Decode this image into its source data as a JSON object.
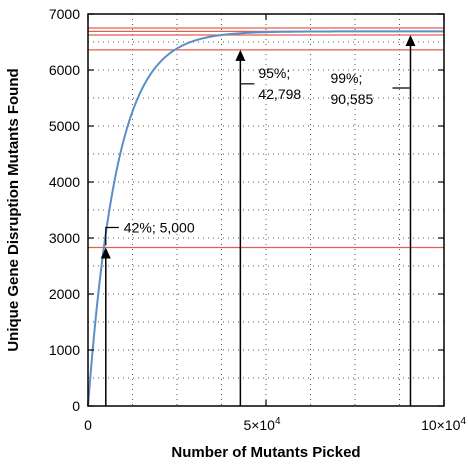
{
  "chart_data": {
    "type": "line",
    "xlabel": "Number of Mutants Picked",
    "ylabel": "Unique Gene Disruption Mutants Found",
    "xlim": [
      0,
      100000
    ],
    "ylim": [
      0,
      7000
    ],
    "x_ticks": [
      0,
      50000,
      100000
    ],
    "x_tick_labels": [
      "0",
      "5×10",
      "10×10"
    ],
    "x_tick_exponent": "4",
    "y_ticks": [
      0,
      1000,
      2000,
      3000,
      4000,
      5000,
      6000,
      7000
    ],
    "y_tick_labels": [
      "0",
      "1000",
      "2000",
      "3000",
      "4000",
      "5000",
      "6000",
      "7000"
    ],
    "grid": "dotted",
    "curve": {
      "saturation": 6690,
      "color": "#5b8fc7",
      "x": [
        0,
        1000,
        2000,
        3000,
        5000,
        8000,
        12000,
        16000,
        20000,
        25000,
        30000,
        35000,
        42798,
        50000,
        60000,
        70000,
        80000,
        90585,
        100000
      ],
      "y": [
        0,
        690,
        1320,
        1890,
        2830,
        3930,
        4910,
        5530,
        5920,
        6220,
        6410,
        6510,
        6360,
        6560,
        6610,
        6640,
        6665,
        6625,
        6650
      ]
    },
    "reference_lines": {
      "color": "#e06050",
      "values": [
        2830,
        6360,
        6625,
        6690,
        6750
      ]
    },
    "annotations": [
      {
        "line1": "42%; 5,000",
        "line2": "",
        "x": 5000,
        "y": 2830
      },
      {
        "line1": "95%;",
        "line2": "42,798",
        "x": 42798,
        "y": 6360
      },
      {
        "line1": "99%;",
        "line2": "90,585",
        "x": 90585,
        "y": 6625
      }
    ]
  }
}
